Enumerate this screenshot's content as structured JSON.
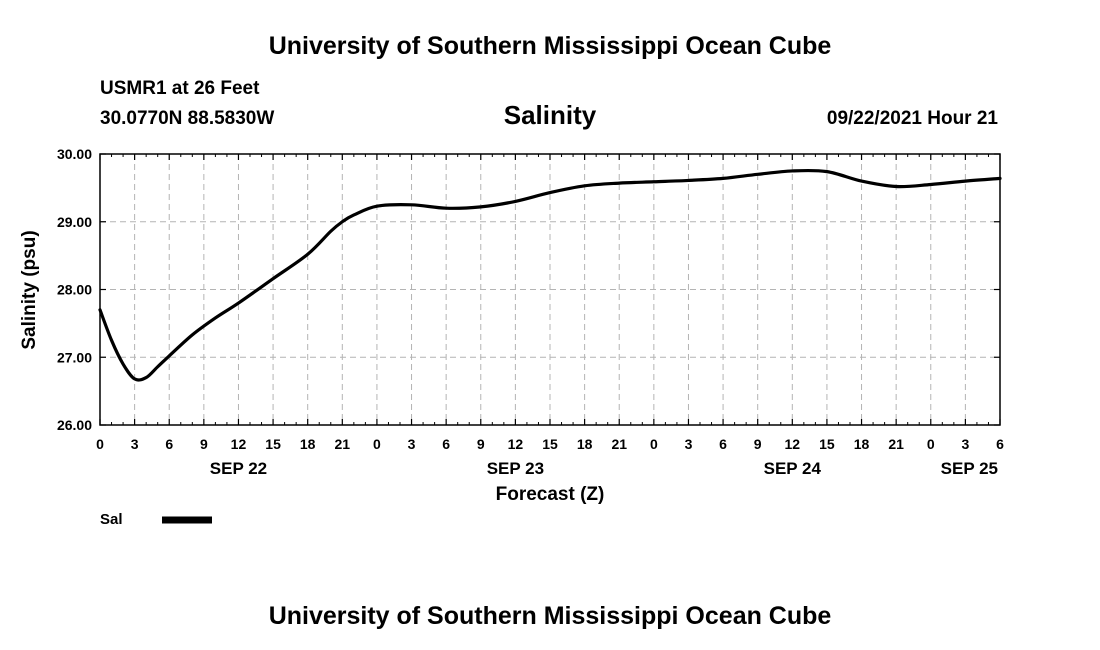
{
  "header": {
    "title": "University of Southern Mississippi Ocean Cube",
    "station": "USMR1 at 26 Feet",
    "coords": "30.0770N  88.5830W",
    "variable": "Salinity",
    "datetime": "09/22/2021 Hour 21"
  },
  "footer": {
    "title": "University of Southern Mississippi Ocean Cube"
  },
  "legend": {
    "label": "Sal",
    "color": "#000000"
  },
  "chart_data": {
    "type": "line",
    "ylabel": "Salinity (psu)",
    "xlabel": "Forecast (Z)",
    "ylim": [
      26.0,
      30.0
    ],
    "xlim": [
      0,
      78
    ],
    "grid": true,
    "yticks": [
      "26.00",
      "27.00",
      "28.00",
      "29.00",
      "30.00"
    ],
    "xticks": [
      "0",
      "3",
      "6",
      "9",
      "12",
      "15",
      "18",
      "21",
      "0",
      "3",
      "6",
      "9",
      "12",
      "15",
      "18",
      "21",
      "0",
      "3",
      "6",
      "9",
      "12",
      "15",
      "18",
      "21",
      "0",
      "3",
      "6"
    ],
    "day_labels": [
      {
        "label": "SEP 22",
        "hour": 12
      },
      {
        "label": "SEP 23",
        "hour": 36
      },
      {
        "label": "SEP 24",
        "hour": 60
      },
      {
        "label": "SEP 25",
        "hour": 78
      }
    ],
    "series": [
      {
        "name": "Sal",
        "x": [
          0,
          1,
          2,
          3,
          4,
          5,
          6,
          8,
          10,
          12,
          15,
          18,
          20,
          21,
          22,
          24,
          27,
          30,
          33,
          36,
          39,
          42,
          45,
          48,
          51,
          54,
          57,
          60,
          63,
          66,
          69,
          72,
          75,
          78
        ],
        "values": [
          27.7,
          27.25,
          26.9,
          26.68,
          26.7,
          26.86,
          27.02,
          27.33,
          27.58,
          27.8,
          28.16,
          28.52,
          28.86,
          29.0,
          29.1,
          29.23,
          29.25,
          29.2,
          29.22,
          29.3,
          29.43,
          29.53,
          29.57,
          29.59,
          29.61,
          29.64,
          29.7,
          29.75,
          29.74,
          29.6,
          29.52,
          29.55,
          29.6,
          29.64
        ]
      }
    ]
  }
}
